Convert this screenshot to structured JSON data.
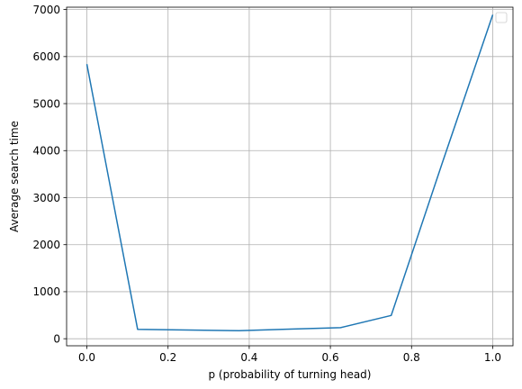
{
  "chart_data": {
    "type": "line",
    "title": "",
    "xlabel": "p (probability of turning head)",
    "ylabel": "Average search time",
    "xlim": [
      -0.05,
      1.05
    ],
    "ylim": [
      -150,
      7050
    ],
    "x_ticks": [
      0.0,
      0.2,
      0.4,
      0.6,
      0.8,
      1.0
    ],
    "x_tick_labels": [
      "0.0",
      "0.2",
      "0.4",
      "0.6",
      "0.8",
      "1.0"
    ],
    "y_ticks": [
      0,
      1000,
      2000,
      3000,
      4000,
      5000,
      6000,
      7000
    ],
    "y_tick_labels": [
      "0",
      "1000",
      "2000",
      "3000",
      "4000",
      "5000",
      "6000",
      "7000"
    ],
    "grid": true,
    "legend": "top-right, empty",
    "series": [
      {
        "color": "#1f77b4",
        "x": [
          0.0,
          0.125,
          0.25,
          0.375,
          0.5,
          0.625,
          0.75,
          0.875,
          1.0
        ],
        "y": [
          5840,
          200,
          185,
          170,
          205,
          235,
          495,
          3720,
          6890
        ]
      }
    ]
  }
}
